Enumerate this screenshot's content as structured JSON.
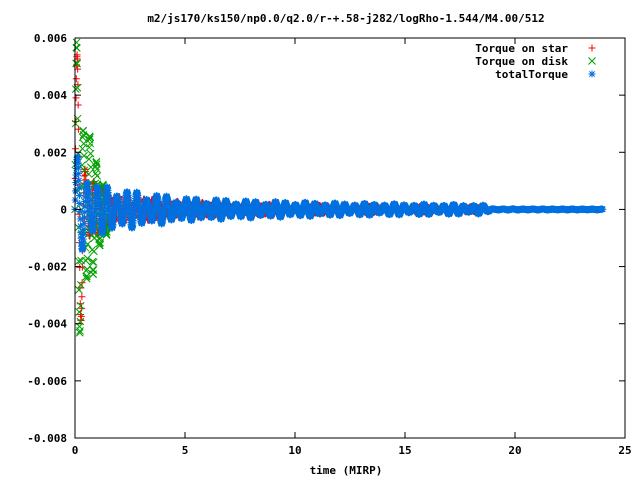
{
  "chart_data": {
    "type": "scatter",
    "title": "m2/js170/ks150/np0.0/q2.0/r-+.58-j282/logRho-1.544/M4.00/512",
    "xlabel": "time (MIRP)",
    "ylabel": "",
    "xlim": [
      0,
      25
    ],
    "ylim": [
      -0.008,
      0.006
    ],
    "x_ticks": [
      "0",
      "5",
      "10",
      "15",
      "20",
      "25"
    ],
    "y_ticks": [
      "-0.008",
      "-0.006",
      "-0.004",
      "-0.002",
      "0",
      "0.002",
      "0.004",
      "0.006"
    ],
    "grid": false,
    "legend_position": "top-right",
    "series": [
      {
        "name": "Torque on star",
        "color": "#ff0000",
        "marker": "plus",
        "x_end": 18.5,
        "envelope": [
          [
            0,
            0.0055
          ],
          [
            0.2,
            0.0055
          ],
          [
            0.5,
            0.0016
          ],
          [
            1,
            0.0009
          ],
          [
            2,
            0.0005
          ],
          [
            4,
            0.00032
          ],
          [
            6,
            0.00025
          ],
          [
            10,
            0.00015
          ],
          [
            14,
            0.0001
          ],
          [
            18.5,
            8e-05
          ]
        ],
        "period": 0.38
      },
      {
        "name": "Torque on disk",
        "color": "#00a000",
        "marker": "cross",
        "x_end": 1.5,
        "envelope": [
          [
            0,
            0.0064
          ],
          [
            0.3,
            0.0045
          ],
          [
            0.7,
            0.0028
          ],
          [
            1.0,
            0.0016
          ],
          [
            1.5,
            0.0012
          ]
        ],
        "period": 0.3
      },
      {
        "name": "totalTorque",
        "color": "#0070e0",
        "marker": "star",
        "x_end": 24,
        "envelope": [
          [
            0,
            0.002
          ],
          [
            1,
            0.0009
          ],
          [
            1.5,
            0.0008
          ],
          [
            3,
            0.0006
          ],
          [
            5,
            0.0004
          ],
          [
            8,
            0.0003
          ],
          [
            12,
            0.00022
          ],
          [
            18.5,
            0.00016
          ],
          [
            19,
            2e-05
          ],
          [
            24,
            1e-05
          ]
        ],
        "period": 0.45
      }
    ]
  }
}
